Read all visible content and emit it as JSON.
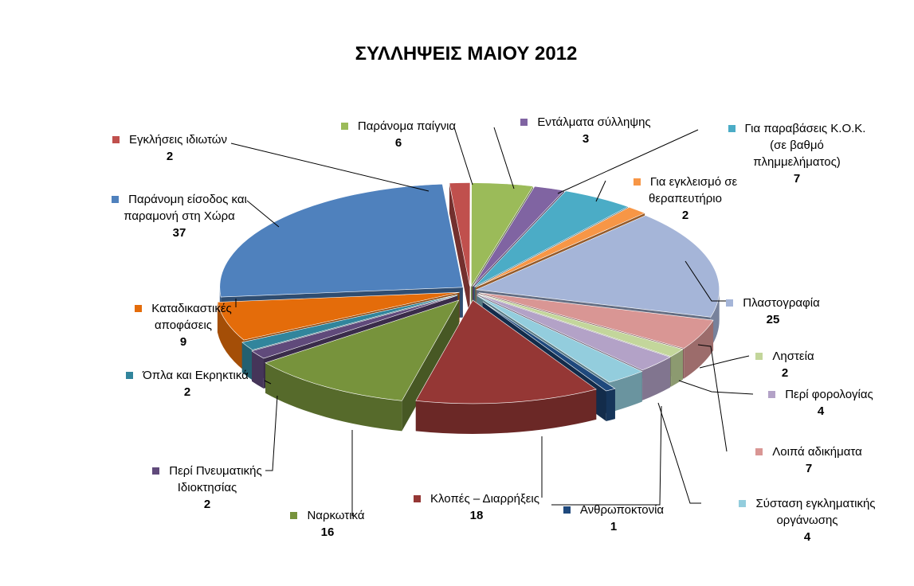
{
  "chart_data": {
    "type": "pie",
    "title": "ΣΥΛΛΗΨΕΙΣ ΜΑΙΟΥ 2012",
    "slices": [
      {
        "label": "Εγκλήσεις ιδιωτών",
        "value": 2,
        "color": "#C0504D"
      },
      {
        "label": "Παράνομα παίγνια",
        "value": 6,
        "color": "#9BBB59"
      },
      {
        "label": "Εντάλματα σύλληψης",
        "value": 3,
        "color": "#8064A2"
      },
      {
        "label": "Για παραβάσεις Κ.Ο.Κ. (σε βαθμό πλημμελήματος)",
        "value": 7,
        "color": "#4BACC6"
      },
      {
        "label": "Για εγκλεισμό σε θεραπευτήριο",
        "value": 2,
        "color": "#F79646"
      },
      {
        "label": "Πλαστογραφία",
        "value": 25,
        "color": "#A5B5D8"
      },
      {
        "label": "Λοιπά αδικήματα",
        "value": 7,
        "color": "#D99694"
      },
      {
        "label": "Ληστεία",
        "value": 2,
        "color": "#C3D69B"
      },
      {
        "label": "Περί φορολογίας",
        "value": 4,
        "color": "#B3A2C7"
      },
      {
        "label": "Σύσταση εγκληματικής οργάνωσης",
        "value": 4,
        "color": "#93CDDD"
      },
      {
        "label": "Ανθρωποκτονία",
        "value": 1,
        "color": "#1F497D"
      },
      {
        "label": "Κλοπές – Διαρρήξεις",
        "value": 18,
        "color": "#953735"
      },
      {
        "label": "Ναρκωτικά",
        "value": 16,
        "color": "#77933C"
      },
      {
        "label": "Περί Πνευματικής Ιδιοκτησίας",
        "value": 2,
        "color": "#604A7B"
      },
      {
        "label": "Όπλα και Εκρηκτικά",
        "value": 2,
        "color": "#31859C"
      },
      {
        "label": "Καταδικαστικές αποφάσεις",
        "value": 9,
        "color": "#E46C0A"
      },
      {
        "label": "Παράνομη είσοδος και παραμονή στη Χώρα",
        "value": 37,
        "color": "#4F81BD"
      }
    ],
    "labels": [
      {
        "lines": [
          "Εγκλήσεις ιδιωτών"
        ],
        "value": "2"
      },
      {
        "lines": [
          "Παράνομα παίγνια"
        ],
        "value": "6"
      },
      {
        "lines": [
          "Εντάλματα σύλληψης"
        ],
        "value": "3"
      },
      {
        "lines": [
          "Για παραβάσεις Κ.Ο.Κ.",
          "(σε βαθμό",
          "πλημμελήματος)"
        ],
        "value": "7"
      },
      {
        "lines": [
          "Για εγκλεισμό σε",
          "θεραπευτήριο"
        ],
        "value": "2"
      },
      {
        "lines": [
          "Πλαστογραφία"
        ],
        "value": "25"
      },
      {
        "lines": [
          "Λοιπά αδικήματα"
        ],
        "value": "7"
      },
      {
        "lines": [
          "Ληστεία"
        ],
        "value": "2"
      },
      {
        "lines": [
          "Περί φορολογίας"
        ],
        "value": "4"
      },
      {
        "lines": [
          "Σύσταση εγκληματικής",
          "οργάνωσης"
        ],
        "value": "4"
      },
      {
        "lines": [
          "Ανθρωποκτονία"
        ],
        "value": "1"
      },
      {
        "lines": [
          "Κλοπές – Διαρρήξεις"
        ],
        "value": "18"
      },
      {
        "lines": [
          "Ναρκωτικά"
        ],
        "value": "16"
      },
      {
        "lines": [
          "Περί Πνευματικής",
          "Ιδιοκτησίας"
        ],
        "value": "2"
      },
      {
        "lines": [
          "Όπλα και Εκρηκτικά"
        ],
        "value": "2"
      },
      {
        "lines": [
          "Καταδικαστικές",
          "αποφάσεις"
        ],
        "value": "9"
      },
      {
        "lines": [
          "Παράνομη είσοδος και",
          "παραμονή στη Χώρα"
        ],
        "value": "37"
      }
    ]
  }
}
